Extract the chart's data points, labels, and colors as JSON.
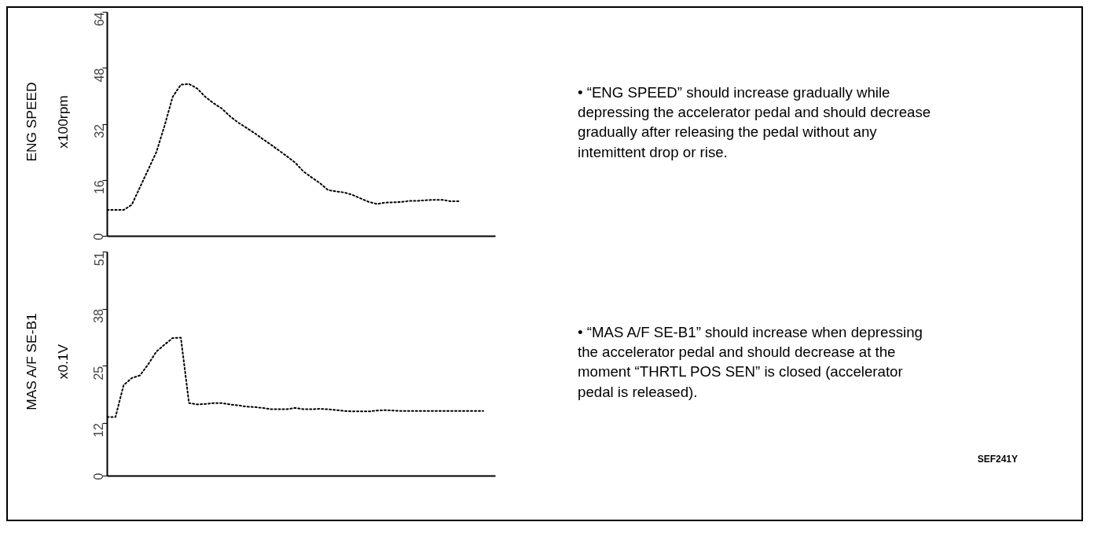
{
  "chart_data": [
    {
      "type": "line",
      "ylabel": "ENG SPEED",
      "annotations": [
        "x100rpm"
      ],
      "categories": [
        null,
        null,
        null,
        null,
        null,
        null,
        null,
        null,
        null,
        null,
        null,
        null,
        null,
        null,
        null,
        null,
        null,
        null,
        null,
        null,
        null,
        null,
        null,
        null,
        null,
        null,
        null,
        null,
        null,
        null,
        null,
        null,
        null,
        null,
        null,
        null,
        null,
        null,
        null,
        null,
        null,
        null,
        null,
        null,
        null,
        null,
        null,
        null
      ],
      "series": [
        {
          "color": "#000000",
          "values": [
            7.5,
            7.5,
            7.5,
            9,
            14,
            19,
            24,
            31.5,
            39.8,
            43.3,
            43.5,
            42.2,
            39.8,
            38,
            36.5,
            34.3,
            32.5,
            31,
            29.5,
            27.8,
            26.2,
            24.5,
            22.8,
            21,
            18.5,
            16.8,
            15.2,
            13.2,
            12.8,
            12.5,
            11.8,
            10.8,
            9.8,
            9.2,
            9.6,
            9.7,
            9.8,
            10.1,
            10.1,
            10.3,
            10.4,
            10.4,
            10,
            10,
            null,
            null,
            null,
            null
          ]
        }
      ],
      "ylim": [
        0,
        64
      ],
      "yticks": [
        0,
        16,
        32,
        48,
        64
      ],
      "grid": false,
      "tick_labels": "y",
      "line_style": "dotted",
      "marker": "none"
    },
    {
      "type": "other",
      "annotations": [
        "• “ENG SPEED” should increase gradually while depressing the accelerator pedal and should decrease gradually after releasing the pedal without any intemittent drop or rise."
      ]
    },
    {
      "type": "line",
      "ylabel": "MAS A/F SE-B1",
      "annotations": [
        "x0.1V"
      ],
      "categories": [
        null,
        null,
        null,
        null,
        null,
        null,
        null,
        null,
        null,
        null,
        null,
        null,
        null,
        null,
        null,
        null,
        null,
        null,
        null,
        null,
        null,
        null,
        null,
        null,
        null,
        null,
        null,
        null,
        null,
        null,
        null,
        null,
        null,
        null,
        null,
        null,
        null,
        null,
        null,
        null,
        null,
        null,
        null,
        null,
        null,
        null,
        null,
        null
      ],
      "series": [
        {
          "color": "#000000",
          "values": [
            13.4,
            13.4,
            20.7,
            22.3,
            22.9,
            25.4,
            28.3,
            29.9,
            31.4,
            31.5,
            16.6,
            16.3,
            16.4,
            16.6,
            16.6,
            16.3,
            16.1,
            15.8,
            15.7,
            15.5,
            15.2,
            15.2,
            15.2,
            15.5,
            15.2,
            15.2,
            15.3,
            15.2,
            15,
            14.8,
            14.7,
            14.7,
            14.7,
            14.9,
            15,
            14.9,
            14.8,
            14.8,
            14.8,
            14.8,
            14.8,
            14.8,
            14.8,
            14.8,
            14.8,
            14.8,
            14.8,
            null
          ]
        }
      ],
      "ylim": [
        0,
        51
      ],
      "yticks": [
        0,
        12,
        25,
        38,
        51
      ],
      "grid": false,
      "tick_labels": "y",
      "line_style": "dotted",
      "marker": "none"
    },
    {
      "type": "other",
      "annotations": [
        "• “MAS A/F SE-B1” should increase when depressing the accelerator pedal and  should decrease at the moment “THRTL POS SEN” is closed (accelerator pedal is released).",
        "SEF241Y"
      ]
    }
  ]
}
